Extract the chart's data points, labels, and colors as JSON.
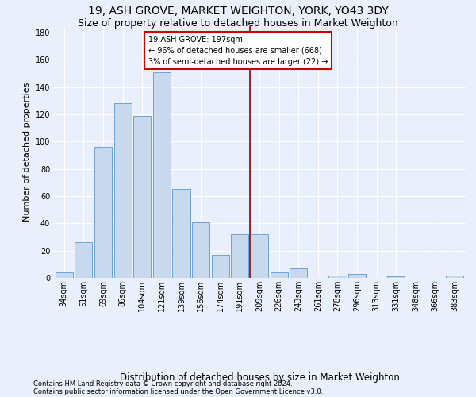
{
  "title1": "19, ASH GROVE, MARKET WEIGHTON, YORK, YO43 3DY",
  "title2": "Size of property relative to detached houses in Market Weighton",
  "xlabel": "Distribution of detached houses by size in Market Weighton",
  "ylabel": "Number of detached properties",
  "footer1": "Contains HM Land Registry data © Crown copyright and database right 2024.",
  "footer2": "Contains public sector information licensed under the Open Government Licence v3.0.",
  "categories": [
    "34sqm",
    "51sqm",
    "69sqm",
    "86sqm",
    "104sqm",
    "121sqm",
    "139sqm",
    "156sqm",
    "174sqm",
    "191sqm",
    "209sqm",
    "226sqm",
    "243sqm",
    "261sqm",
    "278sqm",
    "296sqm",
    "313sqm",
    "331sqm",
    "348sqm",
    "366sqm",
    "383sqm"
  ],
  "values": [
    4,
    26,
    96,
    128,
    119,
    151,
    65,
    41,
    17,
    32,
    32,
    4,
    7,
    0,
    2,
    3,
    0,
    1,
    0,
    0,
    2
  ],
  "bar_color": "#c9d9ed",
  "bar_edge_color": "#5b9bd5",
  "vline_x_index": 9.5,
  "vline_color": "#8b0000",
  "annotation_box_color": "#ffffff",
  "annotation_box_edge": "#cc0000",
  "ylim": [
    0,
    185
  ],
  "yticks": [
    0,
    20,
    40,
    60,
    80,
    100,
    120,
    140,
    160,
    180
  ],
  "background_color": "#eaf0fb",
  "grid_color": "#ffffff",
  "title_fontsize": 10,
  "subtitle_fontsize": 9,
  "tick_fontsize": 7,
  "ylabel_fontsize": 8,
  "xlabel_fontsize": 8.5,
  "annotation_fontsize": 7,
  "footer_fontsize": 6
}
